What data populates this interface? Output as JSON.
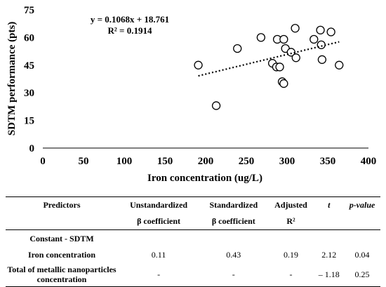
{
  "chart_data": {
    "type": "scatter",
    "xlabel": "Iron concentration (ug/L)",
    "ylabel": "SDTM performance (pts)",
    "xlim": [
      0,
      400
    ],
    "ylim": [
      0,
      75
    ],
    "xticks": [
      "0",
      "50",
      "100",
      "150",
      "200",
      "250",
      "300",
      "350",
      "400"
    ],
    "yticks": [
      "0",
      "15",
      "30",
      "45",
      "60",
      "75"
    ],
    "equation": "y = 0.1068x + 18.761",
    "r_squared": "R² = 0.1914",
    "points": [
      [
        191,
        45
      ],
      [
        213,
        23
      ],
      [
        239,
        54
      ],
      [
        268,
        60
      ],
      [
        282,
        46
      ],
      [
        287,
        44
      ],
      [
        288,
        59
      ],
      [
        291,
        44
      ],
      [
        294,
        36
      ],
      [
        296,
        35
      ],
      [
        296,
        59
      ],
      [
        298,
        54
      ],
      [
        305,
        52
      ],
      [
        310,
        65
      ],
      [
        311,
        49
      ],
      [
        333,
        59
      ],
      [
        341,
        64
      ],
      [
        342,
        56
      ],
      [
        343,
        48
      ],
      [
        354,
        63
      ],
      [
        364,
        45
      ]
    ],
    "trendline": {
      "slope": 0.1068,
      "intercept": 18.761,
      "x_range": [
        191,
        364
      ]
    }
  },
  "table": {
    "header_top": [
      "Predictors",
      "Unstandardized",
      "Standardized",
      "Adjusted",
      "t",
      "p-value"
    ],
    "header_bottom": [
      "",
      "β coefficient",
      "β coefficient",
      "R²",
      "",
      ""
    ],
    "rows": [
      [
        "Constant - SDTM",
        "",
        "",
        "",
        "",
        ""
      ],
      [
        "Iron concentration",
        "0.11",
        "0.43",
        "0.19",
        "2.12",
        "0.04"
      ],
      [
        "Total of metallic nanoparticles concentration",
        "-",
        "-",
        "-",
        "– 1.18",
        "0.25"
      ]
    ]
  }
}
